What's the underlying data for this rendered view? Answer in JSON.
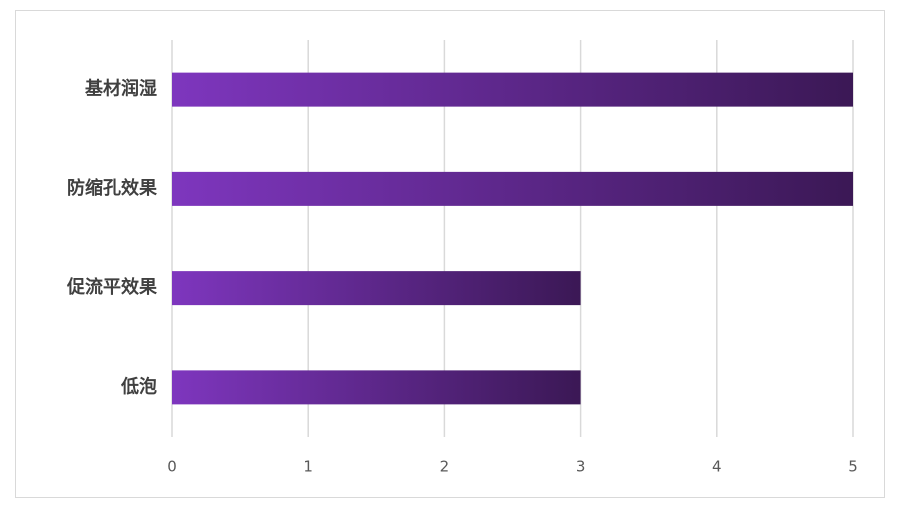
{
  "chart_data": {
    "type": "bar",
    "orientation": "horizontal",
    "categories": [
      "基材润湿",
      "防缩孔效果",
      "促流平效果",
      "低泡"
    ],
    "values": [
      5,
      5,
      3,
      3
    ],
    "color": "#7e36be",
    "gradient_end": "#3b1855",
    "xlim": [
      0,
      5
    ],
    "xticks": [
      0,
      1,
      2,
      3,
      4,
      5
    ],
    "grid": true
  }
}
